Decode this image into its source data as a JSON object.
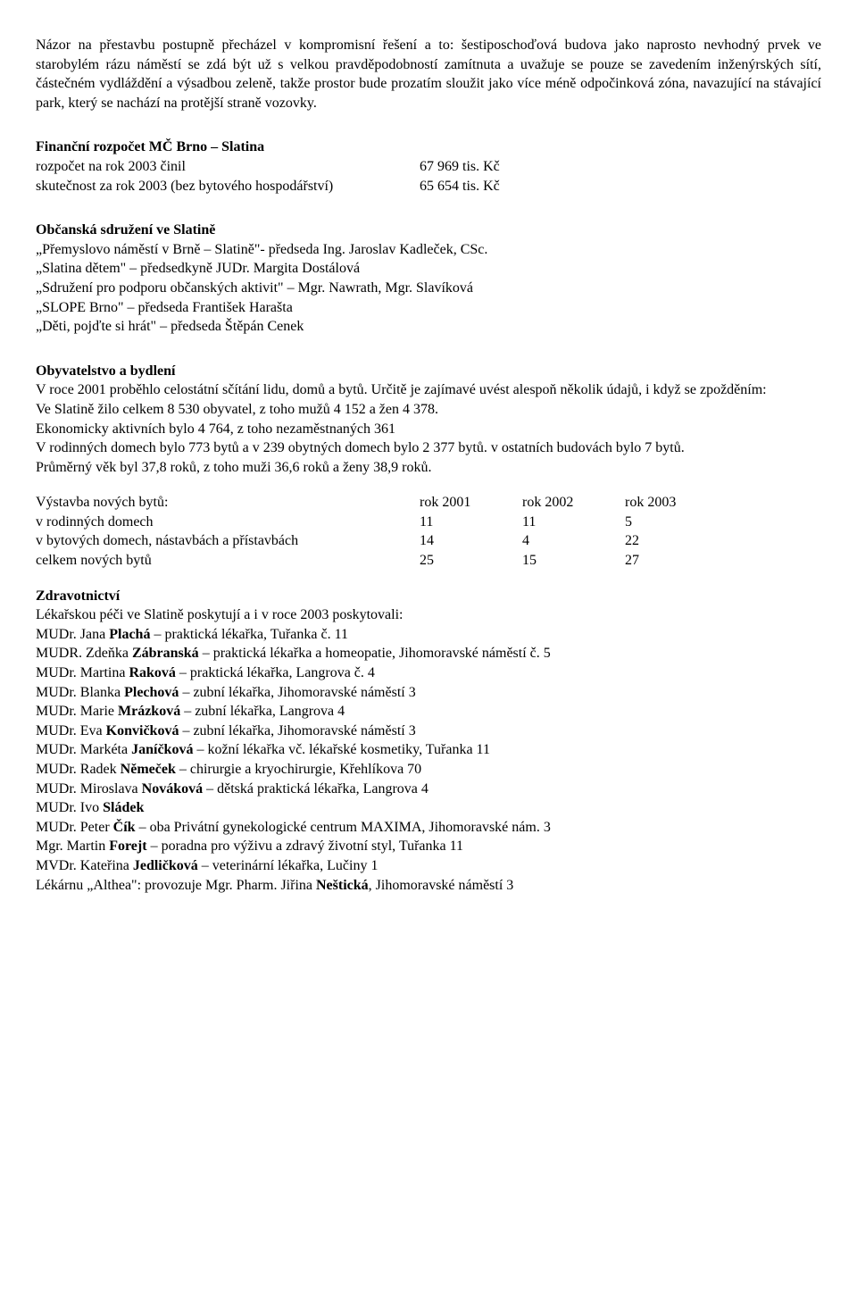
{
  "intro": "Názor na přestavbu postupně přecházel v kompromisní řešení a to: šestiposchoďová budova jako naprosto nevhodný prvek ve starobylém rázu náměstí se zdá být už s velkou pravděpodobností zamítnuta a uvažuje se pouze se zavedením inženýrských sítí, částečném vydláždění a výsadbou zeleně, takže prostor bude prozatím sloužit jako více méně odpočinková zóna, navazující na stávající park, který se nachází na protější straně vozovky.",
  "budget": {
    "heading": "Finanční rozpočet MČ Brno – Slatina",
    "rows": [
      {
        "label": "rozpočet na rok 2003 činil",
        "value": "67 969 tis. Kč"
      },
      {
        "label": "skutečnost za rok 2003 (bez bytového hospodářství)",
        "value": "65 654 tis. Kč"
      }
    ]
  },
  "assoc": {
    "heading": "Občanská sdružení ve Slatině",
    "lines": [
      "„Přemyslovo náměstí v Brně – Slatině\"- předseda Ing. Jaroslav Kadleček, CSc.",
      "„Slatina dětem\" – předsedkyně JUDr. Margita Dostálová",
      "„Sdružení pro podporu občanských aktivit\" – Mgr. Nawrath,  Mgr. Slavíková",
      "„SLOPE Brno\" – předseda František Harašta",
      "„Děti, pojďte si hrát\" – předseda Štěpán Cenek"
    ]
  },
  "pop": {
    "heading": "Obyvatelstvo a bydlení",
    "paras": [
      "V roce 2001 proběhlo celostátní sčítání lidu, domů a bytů. Určitě je zajímavé uvést alespoň několik údajů, i když se zpožděním:",
      "Ve Slatině žilo celkem 8 530 obyvatel, z toho mužů 4 152 a žen 4 378.",
      "Ekonomicky aktivních bylo 4 764, z toho nezaměstnaných 361",
      "V rodinných domech bylo 773 bytů a v 239 obytných domech bylo 2 377 bytů. v ostatních budovách bylo 7 bytů.",
      " Průměrný věk byl 37,8 roků, z toho muži 36,6 roků a ženy 38,9 roků."
    ]
  },
  "stats": {
    "header": {
      "label": "Výstavba nových bytů:",
      "c1": "rok  2001",
      "c2": "rok  2002",
      "c3": "rok  2003"
    },
    "rows": [
      {
        "label": "v rodinných domech",
        "c1": "11",
        "c2": "11",
        "c3": "5"
      },
      {
        "label": "v bytových domech, nástavbách a přístavbách",
        "c1": "14",
        "c2": "4",
        "c3": "22"
      },
      {
        "label": "celkem nových bytů",
        "c1": "25",
        "c2": "15",
        "c3": "27"
      }
    ]
  },
  "health": {
    "heading": "Zdravotnictví",
    "intro": "Lékařskou péči ve Slatině poskytují a i v roce 2003 poskytovali:",
    "items": [
      {
        "pre": "MUDr. Jana ",
        "bold": "Plachá",
        "post": " – praktická lékařka,  Tuřanka č. 11"
      },
      {
        "pre": "MUDR. Zdeňka  ",
        "bold": "Zábranská",
        "post": " – praktická lékařka a homeopatie, Jihomoravské náměstí č. 5"
      },
      {
        "pre": "MUDr. Martina ",
        "bold": "Raková",
        "post": " – praktická lékařka, Langrova č. 4"
      },
      {
        "pre": "MUDr. Blanka ",
        "bold": "Plechová",
        "post": " – zubní lékařka, Jihomoravské náměstí 3"
      },
      {
        "pre": "MUDr. Marie ",
        "bold": "Mrázková",
        "post": " – zubní lékařka, Langrova 4"
      },
      {
        "pre": "MUDr. Eva ",
        "bold": "Konvičková",
        "post": " – zubní lékařka, Jihomoravské náměstí 3"
      },
      {
        "pre": "MUDr. Markéta ",
        "bold": "Janíčková",
        "post": " – kožní lékařka vč. lékařské kosmetiky, Tuřanka 11"
      },
      {
        "pre": "MUDr. Radek ",
        "bold": "Němeček",
        "post": " – chirurgie a kryochirurgie, Křehlíkova 70"
      },
      {
        "pre": "MUDr. Miroslava ",
        "bold": "Nováková",
        "post": " – dětská praktická lékařka, Langrova 4"
      },
      {
        "pre": "MUDr. Ivo ",
        "bold": "Sládek",
        "post": ""
      },
      {
        "pre": "MUDr. Peter ",
        "bold": "Čík",
        "post": " – oba Privátní gynekologické centrum MAXIMA, Jihomoravské nám.  3"
      },
      {
        "pre": "Mgr. Martin ",
        "bold": "Forejt",
        "post": " – poradna pro výživu a zdravý životní styl, Tuřanka 11"
      },
      {
        "pre": "MVDr. Kateřina ",
        "bold": "Jedličková",
        "post": " – veterinární lékařka, Lučiny 1"
      },
      {
        "pre": "Lékárnu „Althea\": provozuje Mgr. Pharm. Jiřina ",
        "bold": "Neštická",
        "post": ", Jihomoravské náměstí 3"
      }
    ]
  }
}
